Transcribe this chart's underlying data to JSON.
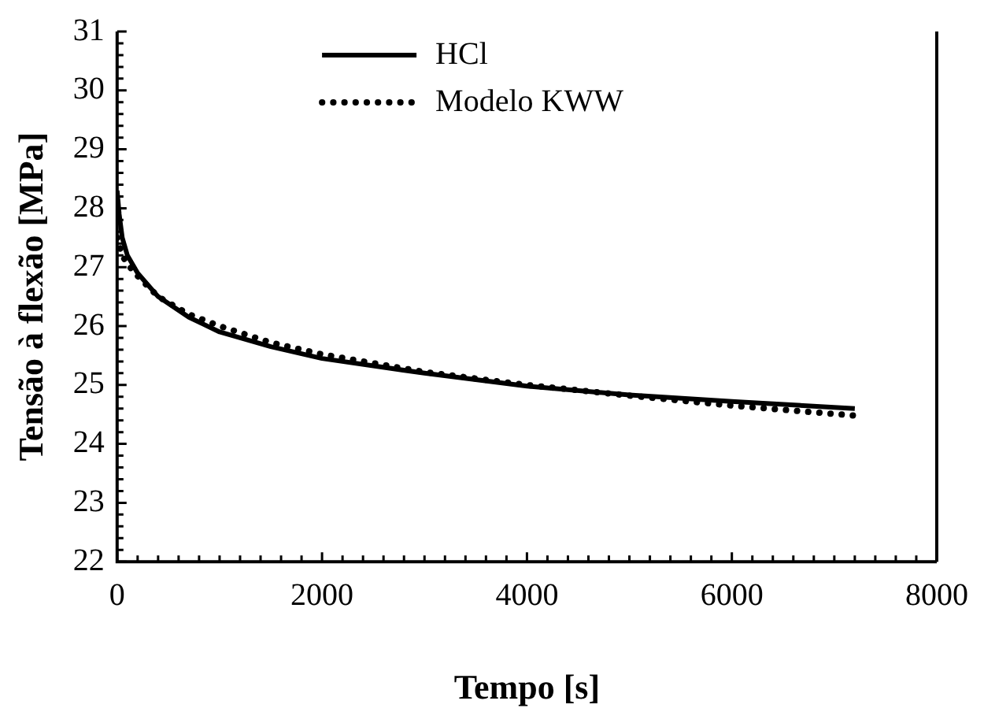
{
  "chart_data": {
    "type": "line",
    "xlabel": "Tempo [s]",
    "ylabel": "Tensão à flexão [MPa]",
    "xlim": [
      0,
      8000
    ],
    "xticks": [
      0,
      2000,
      4000,
      6000,
      8000
    ],
    "ylim": [
      22,
      31
    ],
    "yticks": [
      22,
      23,
      24,
      25,
      26,
      27,
      28,
      29,
      30,
      31
    ],
    "grid": false,
    "legend": "top",
    "marker": "none",
    "series": [
      {
        "name": "HCl",
        "color": "#000000",
        "line_style": "solid",
        "x": [
          0,
          20,
          50,
          100,
          200,
          400,
          700,
          1000,
          1500,
          2000,
          3000,
          4000,
          5000,
          6000,
          7200
        ],
        "values": [
          28.3,
          27.9,
          27.5,
          27.2,
          26.9,
          26.5,
          26.15,
          25.9,
          25.65,
          25.45,
          25.2,
          24.98,
          24.83,
          24.72,
          24.6
        ]
      },
      {
        "name": "Modelo KWW",
        "color": "#000000",
        "line_style": "dotted",
        "x": [
          0,
          50,
          100,
          200,
          400,
          700,
          1000,
          1500,
          2000,
          3000,
          4000,
          5000,
          6000,
          7200
        ],
        "values": [
          27.5,
          27.2,
          27.05,
          26.85,
          26.5,
          26.2,
          26.0,
          25.72,
          25.52,
          25.22,
          25.0,
          24.82,
          24.65,
          24.48
        ]
      }
    ]
  }
}
